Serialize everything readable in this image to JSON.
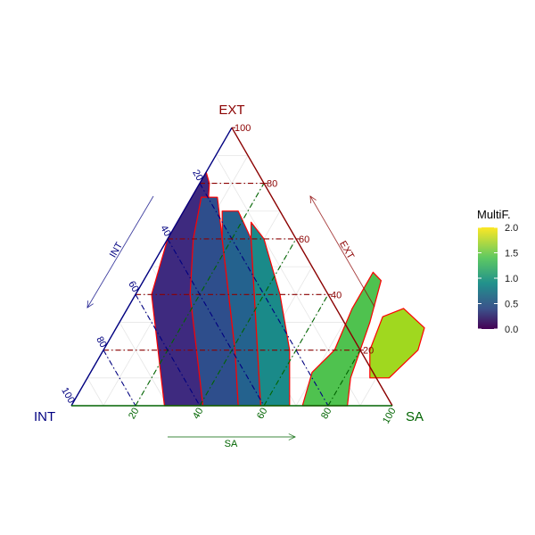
{
  "chart_data": {
    "type": "ternary",
    "axes": {
      "top": {
        "name": "EXT",
        "color": "#8b0000",
        "ticks": [
          "20",
          "40",
          "60",
          "80",
          "100"
        ]
      },
      "left": {
        "name": "INT",
        "color": "#000080",
        "ticks": [
          "20",
          "40",
          "60",
          "80",
          "100"
        ]
      },
      "right": {
        "name": "SA",
        "color": "#006400",
        "ticks": [
          "20",
          "40",
          "60",
          "80",
          "100"
        ]
      }
    },
    "arrow_labels": {
      "top": "EXT",
      "left": "INT",
      "right": "SA"
    },
    "legend": {
      "title": "MultiF.",
      "ticks": [
        "2.0",
        "1.5",
        "1.0",
        "0.5",
        "0.0"
      ],
      "range": [
        0,
        2
      ],
      "placement": "right",
      "palette": "viridis"
    },
    "band_color": "#ff0000",
    "gridlines": true,
    "bands": [
      {
        "value": 0.1,
        "color": "#3e2a7f",
        "points": [
          [
            29,
            0,
            71
          ],
          [
            17,
            20,
            63
          ],
          [
            5,
            40,
            55
          ],
          [
            0,
            60,
            40
          ],
          [
            0,
            80,
            20
          ],
          [
            0,
            84,
            16
          ],
          [
            3,
            80,
            17
          ],
          [
            12,
            60,
            28
          ],
          [
            23,
            40,
            37
          ],
          [
            34,
            20,
            46
          ],
          [
            41,
            0,
            59
          ]
        ]
      },
      {
        "value": 0.45,
        "color": "#2e4e8c",
        "points": [
          [
            41,
            0,
            59
          ],
          [
            29,
            20,
            51
          ],
          [
            17,
            40,
            43
          ],
          [
            8,
            60,
            32
          ],
          [
            3,
            75,
            22
          ],
          [
            8,
            75,
            17
          ],
          [
            17,
            60,
            23
          ],
          [
            29,
            40,
            31
          ],
          [
            41,
            20,
            39
          ],
          [
            52,
            0,
            48
          ]
        ]
      },
      {
        "value": 0.75,
        "color": "#24628e",
        "points": [
          [
            52,
            0,
            48
          ],
          [
            41,
            20,
            39
          ],
          [
            29,
            40,
            31
          ],
          [
            17,
            60,
            23
          ],
          [
            12,
            70,
            18
          ],
          [
            17,
            70,
            13
          ],
          [
            26,
            60,
            14
          ],
          [
            37,
            40,
            23
          ],
          [
            48,
            20,
            32
          ],
          [
            59,
            0,
            41
          ]
        ]
      },
      {
        "value": 1.05,
        "color": "#1a8a89",
        "points": [
          [
            59,
            0,
            41
          ],
          [
            48,
            20,
            32
          ],
          [
            37,
            40,
            23
          ],
          [
            26,
            60,
            14
          ],
          [
            23,
            66,
            11
          ],
          [
            30,
            60,
            10
          ],
          [
            45,
            40,
            15
          ],
          [
            58,
            20,
            22
          ],
          [
            68,
            0,
            32
          ]
        ]
      },
      {
        "value": 1.5,
        "color": "#4fc24f",
        "points": [
          [
            72,
            0,
            28
          ],
          [
            69,
            12,
            19
          ],
          [
            72,
            20,
            8
          ],
          [
            70,
            35,
            -5
          ],
          [
            70,
            48,
            -18
          ],
          [
            74,
            45,
            -19
          ],
          [
            78,
            30,
            -8
          ],
          [
            82,
            10,
            8
          ],
          [
            86,
            0,
            14
          ]
        ]
      },
      {
        "value": 1.8,
        "color": "#a0d81f",
        "points": [
          [
            83,
            20,
            -3
          ],
          [
            81,
            32,
            -13
          ],
          [
            86,
            35,
            -21
          ],
          [
            96,
            28,
            -24
          ],
          [
            98,
            20,
            -18
          ],
          [
            94,
            10,
            -4
          ],
          [
            88,
            10,
            2
          ]
        ]
      }
    ]
  }
}
